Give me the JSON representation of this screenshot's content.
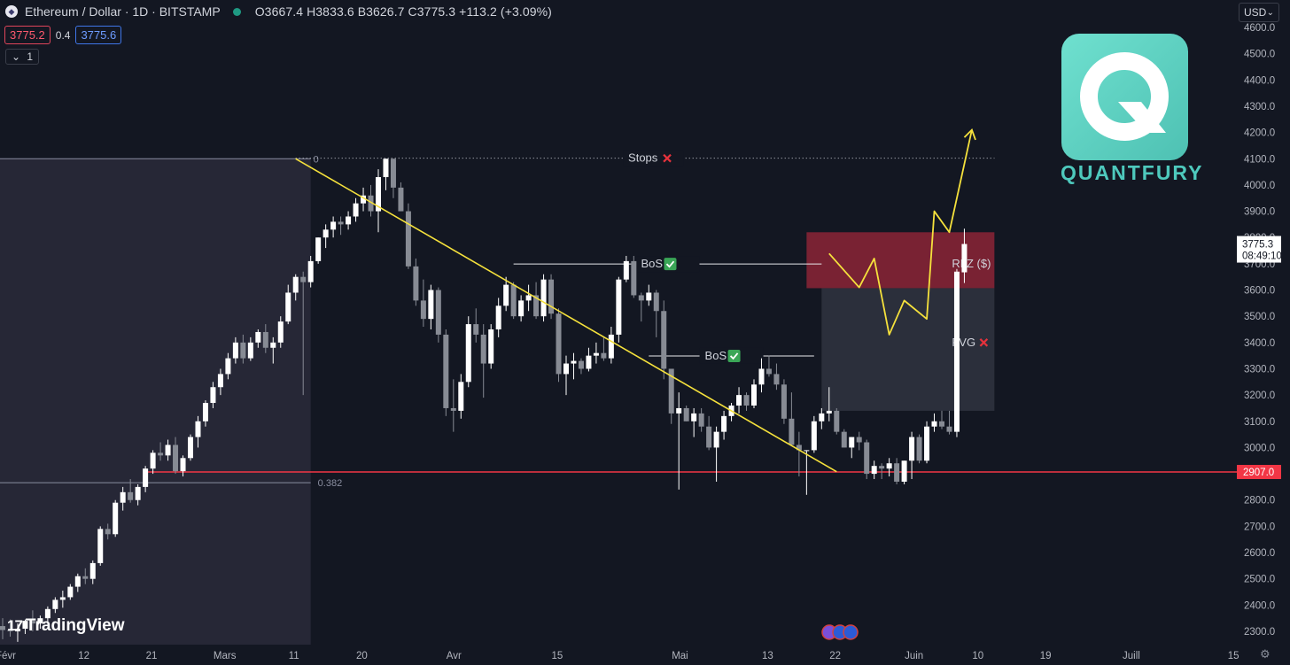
{
  "header": {
    "logo_icon": "ethereum-icon",
    "symbol": "Ethereum / Dollar · 1D · BITSTAMP",
    "status_color": "#1f9a83",
    "ohlc": "O3667.4  H3833.6  B3626.7  C3775.3  +113.2 (+3.09%)",
    "sell_price": "3775.2",
    "spread": "0.4",
    "buy_price": "3775.6",
    "indicator_toggle": "1"
  },
  "currency": "USD",
  "brand": {
    "name": "QUANTFURY",
    "color": "#4ec9bd",
    "logo_icon": "quantfury-q-icon"
  },
  "watermark": "TradingView",
  "chart_data": {
    "type": "candlestick",
    "instrument": "ETH/USD",
    "interval": "1D",
    "exchange": "BITSTAMP",
    "y_axis": {
      "ticks": [
        2300,
        2400,
        2500,
        2600,
        2700,
        2800,
        2900,
        3000,
        3100,
        3200,
        3300,
        3400,
        3500,
        3600,
        3700,
        3800,
        3900,
        4000,
        4100,
        4200,
        4300,
        4400,
        4500,
        4600
      ],
      "tick_labels": [
        "2300.0",
        "2400.0",
        "2500.0",
        "2600.0",
        "2700.0",
        "2800.0",
        "2900.0",
        "3000.0",
        "3100.0",
        "3200.0",
        "3300.0",
        "3400.0",
        "3500.0",
        "3600.0",
        "3700.0",
        "3800.0",
        "3900.0",
        "4000.0",
        "4100.0",
        "4200.0",
        "4300.0",
        "4400.0",
        "4500.0",
        "4600.0"
      ],
      "range": [
        2270,
        4620
      ]
    },
    "x_axis": {
      "labels": [
        {
          "text": "Févr",
          "day": 0
        },
        {
          "text": "12",
          "day": 11
        },
        {
          "text": "21",
          "day": 20
        },
        {
          "text": "Mars",
          "day": 29
        },
        {
          "text": "11",
          "day": 39
        },
        {
          "text": "20",
          "day": 48
        },
        {
          "text": "Avr",
          "day": 60
        },
        {
          "text": "15",
          "day": 74
        },
        {
          "text": "Mai",
          "day": 90
        },
        {
          "text": "13",
          "day": 102
        },
        {
          "text": "22",
          "day": 111
        },
        {
          "text": "Juin",
          "day": 121
        },
        {
          "text": "10",
          "day": 130
        },
        {
          "text": "19",
          "day": 139
        },
        {
          "text": "Juill",
          "day": 150
        },
        {
          "text": "15",
          "day": 164
        }
      ],
      "range_days": [
        -1,
        168
      ]
    },
    "candles": [
      [
        2320,
        2350,
        2270,
        2305
      ],
      [
        2305,
        2345,
        2280,
        2300
      ],
      [
        2300,
        2330,
        2260,
        2310
      ],
      [
        2310,
        2345,
        2290,
        2340
      ],
      [
        2340,
        2380,
        2300,
        2330
      ],
      [
        2330,
        2360,
        2310,
        2350
      ],
      [
        2350,
        2395,
        2330,
        2385
      ],
      [
        2385,
        2430,
        2370,
        2420
      ],
      [
        2420,
        2455,
        2390,
        2430
      ],
      [
        2430,
        2480,
        2420,
        2470
      ],
      [
        2470,
        2520,
        2450,
        2510
      ],
      [
        2510,
        2540,
        2480,
        2500
      ],
      [
        2500,
        2570,
        2480,
        2560
      ],
      [
        2560,
        2700,
        2550,
        2690
      ],
      [
        2690,
        2710,
        2650,
        2670
      ],
      [
        2670,
        2800,
        2660,
        2790
      ],
      [
        2790,
        2850,
        2760,
        2830
      ],
      [
        2830,
        2880,
        2790,
        2800
      ],
      [
        2800,
        2860,
        2780,
        2850
      ],
      [
        2850,
        2930,
        2830,
        2920
      ],
      [
        2920,
        2990,
        2900,
        2980
      ],
      [
        2980,
        3020,
        2950,
        2970
      ],
      [
        2970,
        3030,
        2950,
        3010
      ],
      [
        3010,
        3040,
        2900,
        2910
      ],
      [
        2910,
        2970,
        2890,
        2960
      ],
      [
        2960,
        3050,
        2950,
        3040
      ],
      [
        3040,
        3120,
        3000,
        3100
      ],
      [
        3100,
        3180,
        3080,
        3170
      ],
      [
        3170,
        3250,
        3150,
        3230
      ],
      [
        3230,
        3300,
        3200,
        3280
      ],
      [
        3280,
        3360,
        3260,
        3340
      ],
      [
        3340,
        3420,
        3320,
        3400
      ],
      [
        3400,
        3430,
        3320,
        3340
      ],
      [
        3340,
        3420,
        3330,
        3400
      ],
      [
        3400,
        3450,
        3380,
        3440
      ],
      [
        3440,
        3470,
        3360,
        3380
      ],
      [
        3380,
        3420,
        3320,
        3400
      ],
      [
        3400,
        3500,
        3380,
        3480
      ],
      [
        3480,
        3620,
        3470,
        3590
      ],
      [
        3590,
        3660,
        3560,
        3650
      ],
      [
        3650,
        3670,
        3200,
        3630
      ],
      [
        3630,
        3730,
        3610,
        3710
      ],
      [
        3710,
        3800,
        3700,
        3800
      ],
      [
        3800,
        3850,
        3760,
        3830
      ],
      [
        3830,
        3880,
        3800,
        3860
      ],
      [
        3860,
        3880,
        3810,
        3850
      ],
      [
        3850,
        3900,
        3830,
        3880
      ],
      [
        3880,
        3950,
        3860,
        3930
      ],
      [
        3930,
        3990,
        3900,
        3960
      ],
      [
        3960,
        4000,
        3880,
        3900
      ],
      [
        3900,
        4060,
        3820,
        4030
      ],
      [
        4030,
        4100,
        3980,
        4100
      ],
      [
        4100,
        4100,
        3950,
        3990
      ],
      [
        3990,
        4010,
        3900,
        3900
      ],
      [
        3900,
        3930,
        3680,
        3690
      ],
      [
        3690,
        3720,
        3540,
        3560
      ],
      [
        3560,
        3640,
        3460,
        3490
      ],
      [
        3490,
        3620,
        3450,
        3600
      ],
      [
        3600,
        3610,
        3400,
        3430
      ],
      [
        3430,
        3450,
        3120,
        3150
      ],
      [
        3150,
        3260,
        3060,
        3140
      ],
      [
        3140,
        3280,
        3110,
        3250
      ],
      [
        3250,
        3500,
        3230,
        3470
      ],
      [
        3470,
        3530,
        3400,
        3430
      ],
      [
        3430,
        3470,
        3190,
        3320
      ],
      [
        3320,
        3470,
        3300,
        3450
      ],
      [
        3450,
        3570,
        3420,
        3540
      ],
      [
        3540,
        3650,
        3520,
        3620
      ],
      [
        3620,
        3630,
        3490,
        3500
      ],
      [
        3500,
        3580,
        3480,
        3560
      ],
      [
        3560,
        3620,
        3520,
        3580
      ],
      [
        3580,
        3630,
        3490,
        3500
      ],
      [
        3500,
        3660,
        3480,
        3640
      ],
      [
        3640,
        3660,
        3490,
        3510
      ],
      [
        3510,
        3530,
        3250,
        3280
      ],
      [
        3280,
        3350,
        3200,
        3320
      ],
      [
        3320,
        3360,
        3260,
        3330
      ],
      [
        3330,
        3340,
        3280,
        3300
      ],
      [
        3300,
        3380,
        3290,
        3350
      ],
      [
        3350,
        3400,
        3320,
        3360
      ],
      [
        3360,
        3420,
        3330,
        3340
      ],
      [
        3340,
        3460,
        3320,
        3430
      ],
      [
        3430,
        3650,
        3400,
        3640
      ],
      [
        3640,
        3730,
        3630,
        3710
      ],
      [
        3710,
        3730,
        3570,
        3580
      ],
      [
        3580,
        3590,
        3480,
        3560
      ],
      [
        3560,
        3620,
        3540,
        3590
      ],
      [
        3590,
        3600,
        3420,
        3520
      ],
      [
        3520,
        3560,
        3260,
        3300
      ],
      [
        3300,
        3300,
        3090,
        3130
      ],
      [
        3130,
        3210,
        2840,
        3150
      ],
      [
        3150,
        3160,
        3100,
        3100
      ],
      [
        3100,
        3150,
        3040,
        3130
      ],
      [
        3130,
        3150,
        3060,
        3080
      ],
      [
        3080,
        3120,
        2990,
        3000
      ],
      [
        3000,
        3080,
        2870,
        3060
      ],
      [
        3060,
        3140,
        3030,
        3120
      ],
      [
        3120,
        3170,
        3100,
        3160
      ],
      [
        3160,
        3230,
        3130,
        3200
      ],
      [
        3200,
        3210,
        3140,
        3160
      ],
      [
        3160,
        3260,
        3150,
        3240
      ],
      [
        3240,
        3340,
        3210,
        3300
      ],
      [
        3300,
        3350,
        3270,
        3280
      ],
      [
        3280,
        3320,
        3220,
        3240
      ],
      [
        3240,
        3260,
        3090,
        3110
      ],
      [
        3110,
        3210,
        3010,
        3010
      ],
      [
        3010,
        3060,
        2890,
        2990
      ],
      [
        2990,
        2990,
        2820,
        2990
      ],
      [
        2990,
        3120,
        2980,
        3100
      ],
      [
        3100,
        3150,
        3070,
        3130
      ],
      [
        3130,
        3230,
        3100,
        3140
      ],
      [
        3140,
        3150,
        3050,
        3060
      ],
      [
        3060,
        3070,
        3000,
        3000
      ],
      [
        3000,
        3040,
        2960,
        3040
      ],
      [
        3040,
        3060,
        2990,
        3020
      ],
      [
        3020,
        3030,
        2880,
        2900
      ],
      [
        2900,
        2950,
        2880,
        2930
      ],
      [
        2930,
        2940,
        2880,
        2920
      ],
      [
        2920,
        2960,
        2890,
        2940
      ],
      [
        2940,
        2960,
        2860,
        2870
      ],
      [
        2870,
        2950,
        2860,
        2950
      ],
      [
        2950,
        3060,
        2880,
        3040
      ],
      [
        3040,
        3050,
        2940,
        2950
      ],
      [
        2950,
        3100,
        2940,
        3080
      ],
      [
        3080,
        3130,
        3060,
        3100
      ],
      [
        3100,
        3140,
        3070,
        3080
      ],
      [
        3080,
        3140,
        3050,
        3060
      ],
      [
        3060,
        3680,
        3040,
        3670
      ],
      [
        3667.4,
        3833.6,
        3626.7,
        3775.3
      ]
    ],
    "bull_color": "#ffffff",
    "bear_color": "#878b94",
    "trendline": {
      "from": [
        39,
        4100
      ],
      "to": [
        111,
        2908
      ],
      "color": "#f5e13c"
    },
    "horizontal_level": {
      "value": 2907,
      "label": "2907.0",
      "from_day": 19,
      "color": "#f23645"
    },
    "fib_level": {
      "label": "0.382",
      "value": 2866
    },
    "fib_zero_label": "0",
    "stops": {
      "label": "Stops",
      "value": 4102,
      "from_day": 39,
      "to_day": 132
    },
    "bos": [
      {
        "label": "BoS",
        "value": 3699,
        "from_day": 68,
        "to_day": 109
      },
      {
        "label": "BoS",
        "value": 3349,
        "from_day": 86,
        "to_day": 108
      }
    ],
    "zones": [
      {
        "label": "RLZ ($)",
        "from_day": 107,
        "to_day": 132,
        "low": 3607,
        "high": 3820,
        "color": "#8c2536"
      },
      {
        "label": "FVG",
        "from_day": 109,
        "to_day": 132,
        "low": 3140,
        "high": 3607,
        "color": "#2f323e"
      }
    ],
    "shaded_region": {
      "from_day": -1,
      "to_day": 41,
      "low": 2270,
      "high": 4100
    },
    "projection": {
      "points": [
        [
          110,
          3739
        ],
        [
          114,
          3610
        ],
        [
          116,
          3720
        ],
        [
          118,
          3430
        ],
        [
          120,
          3560
        ],
        [
          123,
          3490
        ],
        [
          124,
          3900
        ],
        [
          126,
          3820
        ],
        [
          129,
          4210
        ]
      ],
      "color": "#f5e13c"
    },
    "last_price": {
      "value": 3775.3,
      "label": "3775.3",
      "countdown": "08:49:10"
    },
    "event_icons": [
      "calendar-event-icon",
      "us-flag-icon",
      "us-flag-icon"
    ]
  }
}
